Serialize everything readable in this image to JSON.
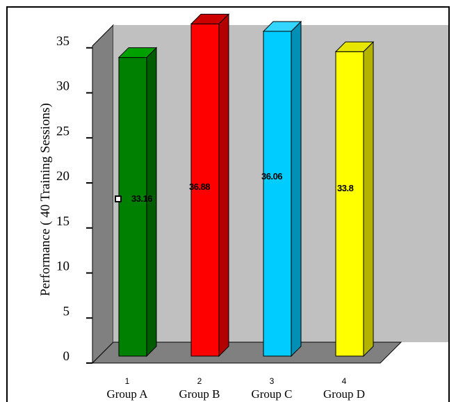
{
  "chart_data": {
    "type": "bar",
    "categories": [
      "Group A",
      "Group B",
      "Group C",
      "Group D"
    ],
    "category_numbers": [
      "1",
      "2",
      "3",
      "4"
    ],
    "values": [
      33.16,
      36.88,
      36.06,
      33.8
    ],
    "data_labels": [
      "33.16",
      "36.88",
      "36.06",
      "33.8"
    ],
    "ylabel": "Performance ( 40 Training Sessions)",
    "ylim": [
      0,
      35
    ],
    "yticks": [
      "0",
      "5",
      "10",
      "15",
      "20",
      "25",
      "30",
      "35"
    ],
    "grid": false,
    "three_d": true,
    "colors": [
      "#008000",
      "#ff0000",
      "#00ccff",
      "#ffff00"
    ],
    "side_colors": [
      "#005c00",
      "#b30000",
      "#0090b5",
      "#b3b300"
    ],
    "top_colors": [
      "#00a000",
      "#cc0000",
      "#33d6ff",
      "#e6e600"
    ],
    "wall_color": "#c0c0c0",
    "side_wall_color": "#808080",
    "floor_color": "#808080"
  }
}
